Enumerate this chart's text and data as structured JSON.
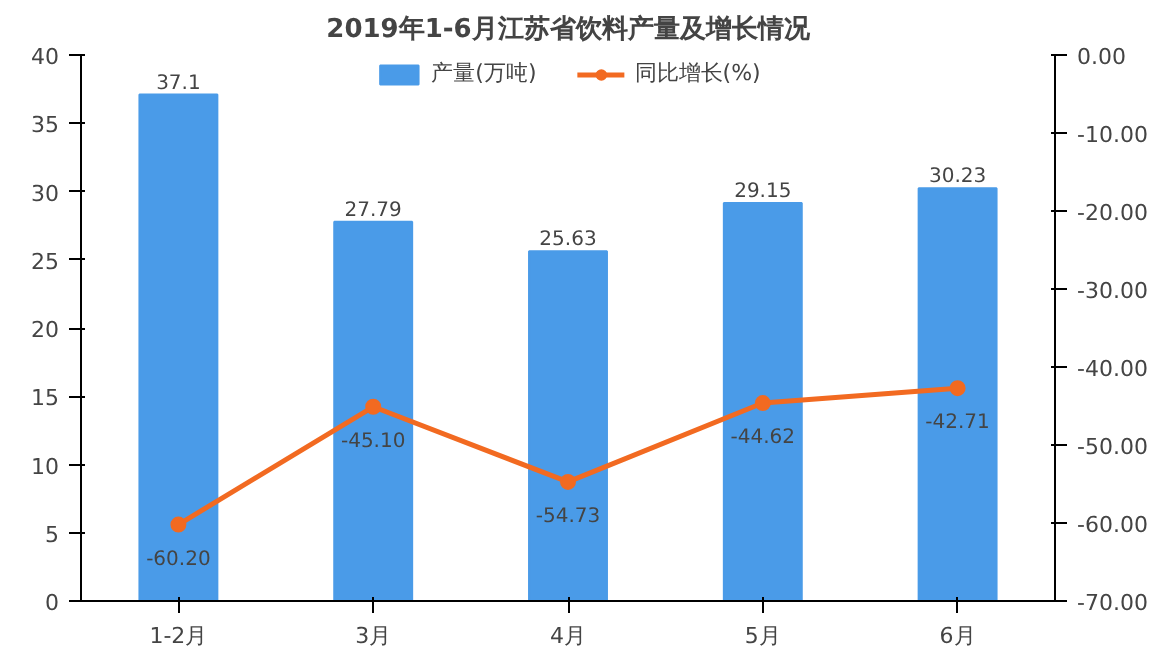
{
  "chart_data": {
    "type": "bar",
    "title": "2019年1-6月江苏省饮料产量及增长情况",
    "categories": [
      "1-2月",
      "3月",
      "4月",
      "5月",
      "6月"
    ],
    "series": [
      {
        "name": "产量(万吨)",
        "color": "#4a9be8",
        "values": [
          37.1,
          27.79,
          25.63,
          29.15,
          30.23
        ],
        "value_labels": [
          "37.1",
          "27.79",
          "25.63",
          "29.15",
          "30.23"
        ]
      },
      {
        "name": "同比增长(%)",
        "type": "line",
        "axis": "y2",
        "color": "#f26a21",
        "marker": "circle",
        "values": [
          -60.2,
          -45.1,
          -54.73,
          -44.62,
          -42.71
        ],
        "value_labels": [
          "-60.20",
          "-45.10",
          "-54.73",
          "-44.62",
          "-42.71"
        ]
      }
    ],
    "ylim": [
      0,
      40
    ],
    "yticks": [
      0,
      5,
      10,
      15,
      20,
      25,
      30,
      35,
      40
    ],
    "y2lim": [
      -70,
      0
    ],
    "y2ticks": [
      {
        "value": 0,
        "label": "0.00"
      },
      {
        "value": -10,
        "label": "-10.00"
      },
      {
        "value": -20,
        "label": "-20.00"
      },
      {
        "value": -30,
        "label": "-30.00"
      },
      {
        "value": -40,
        "label": "-40.00"
      },
      {
        "value": -50,
        "label": "-50.00"
      },
      {
        "value": -60,
        "label": "-60.00"
      },
      {
        "value": -70,
        "label": "-70.00"
      }
    ],
    "grid": false,
    "legend": "top"
  }
}
